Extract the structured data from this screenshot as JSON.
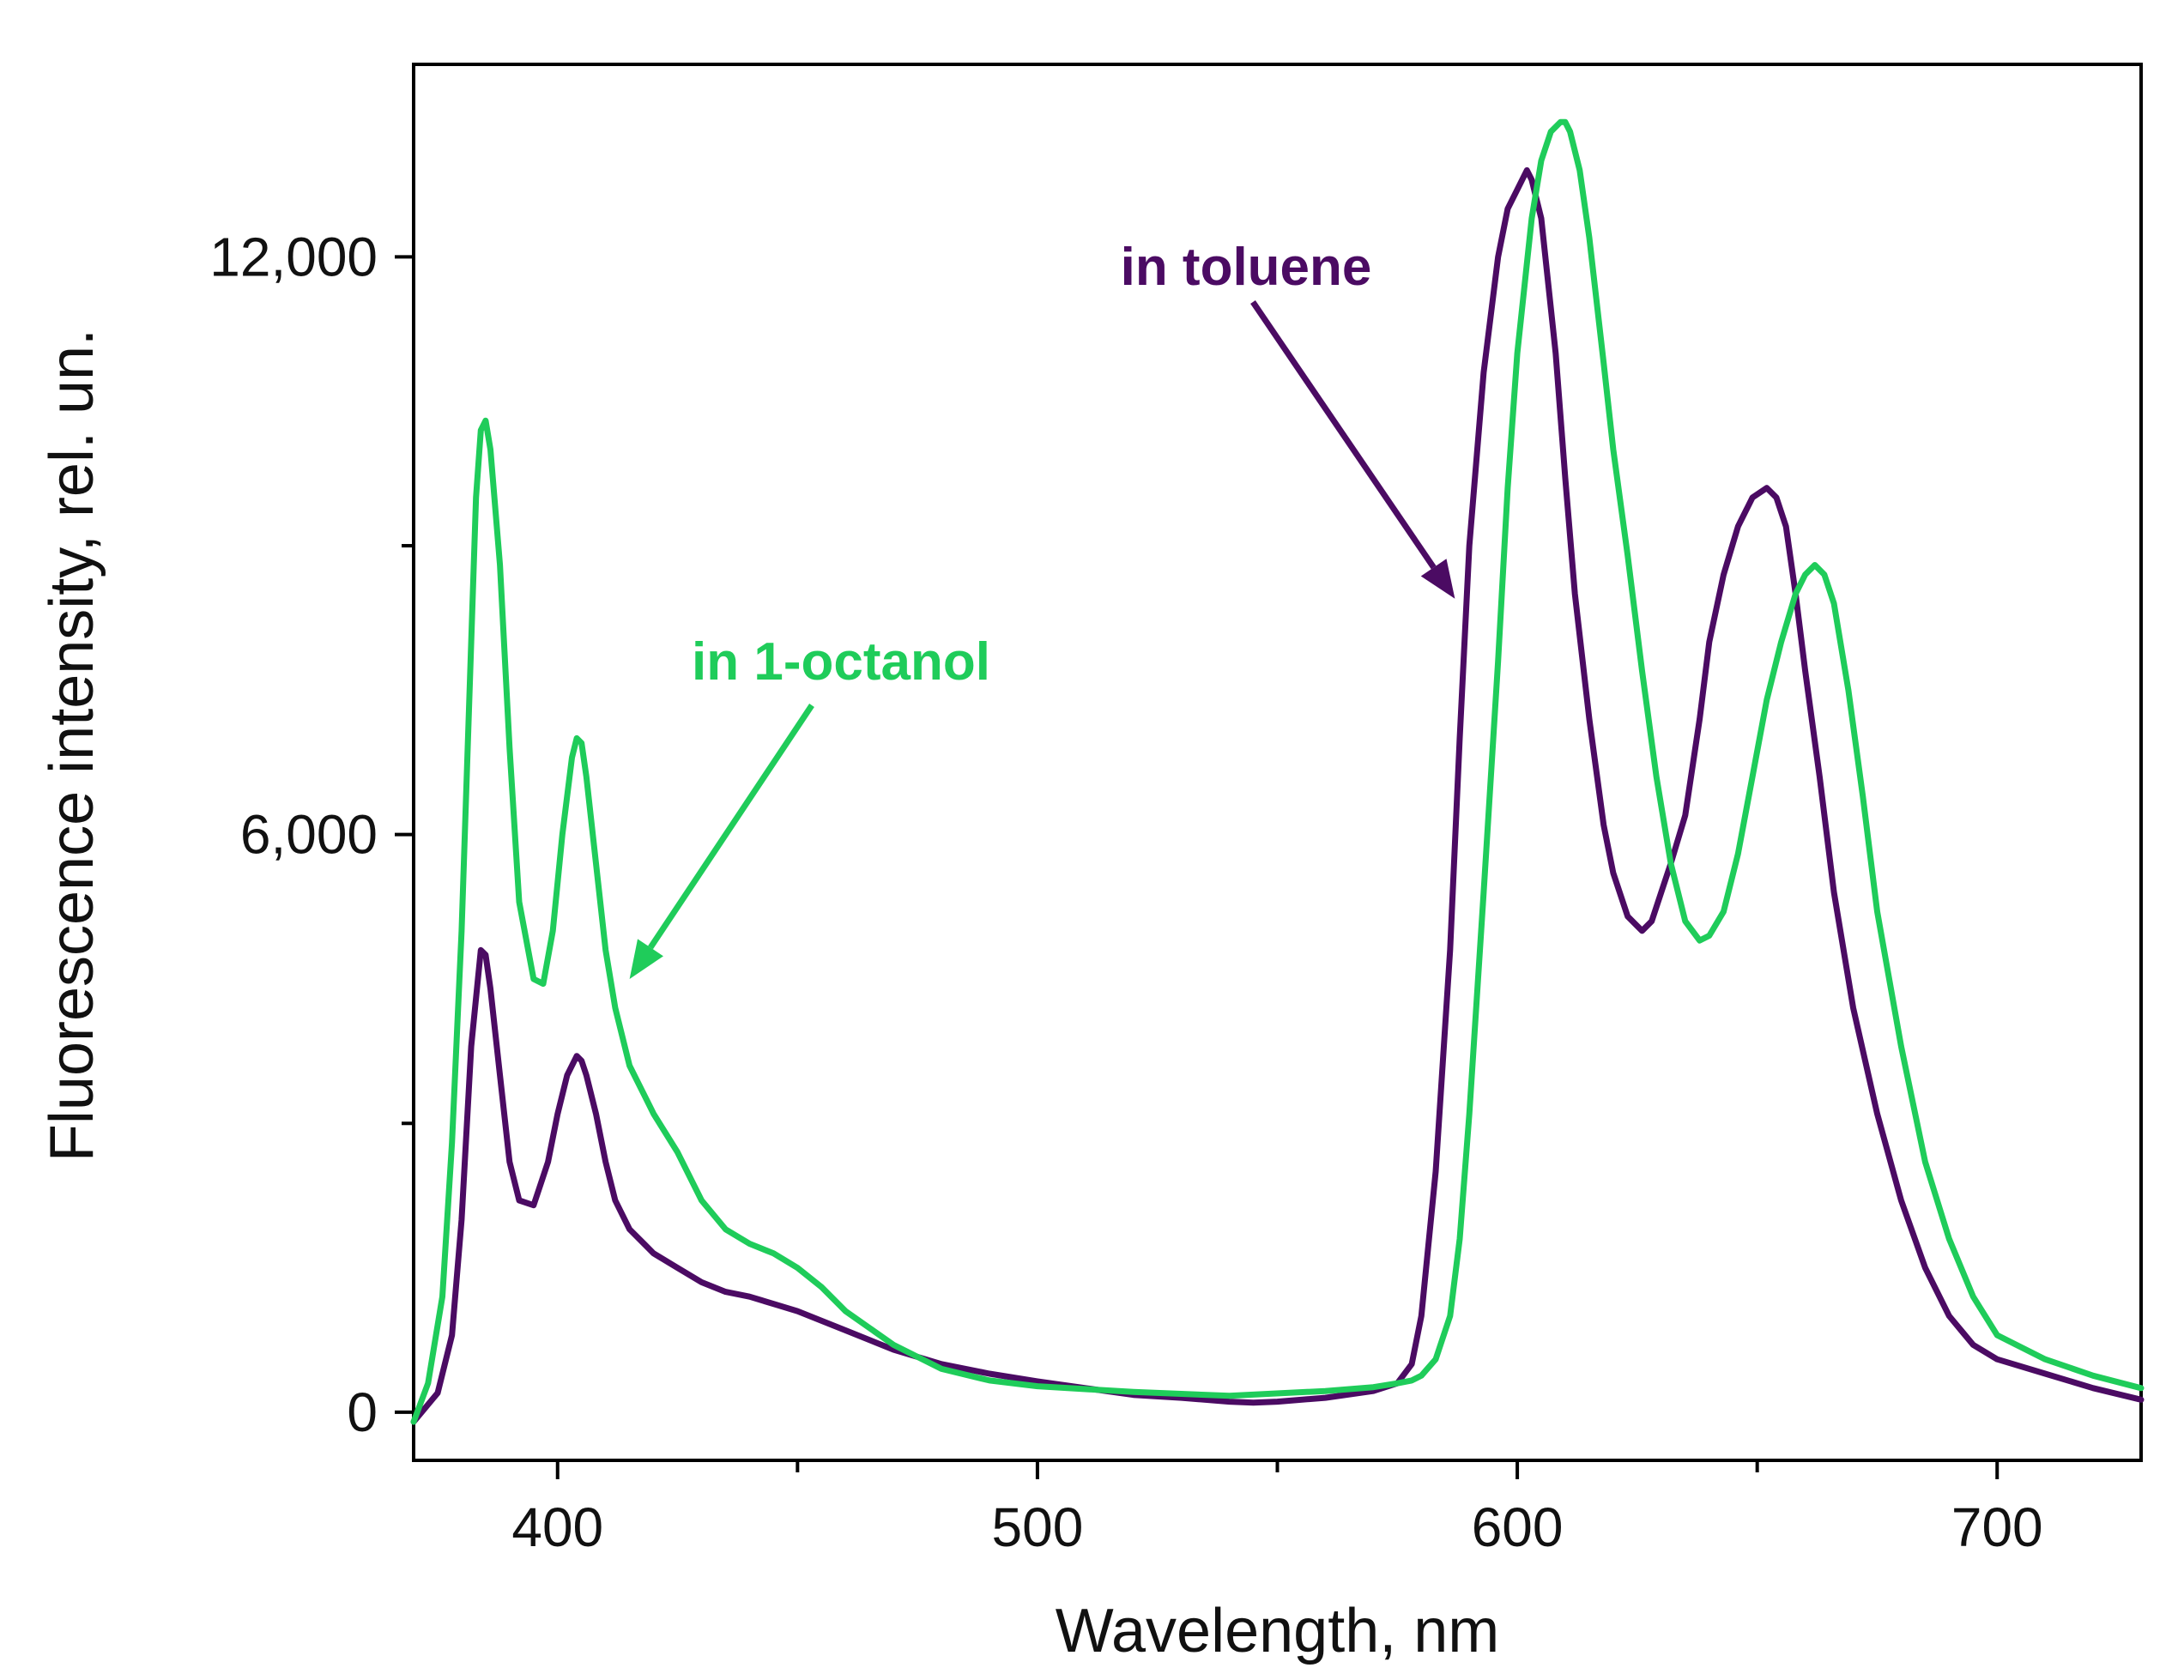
{
  "chart_data": {
    "type": "line",
    "title": "",
    "xlabel": "Wavelength, nm",
    "ylabel": "Fluorescence intensity, rel. un.",
    "xlim": [
      370,
      730
    ],
    "ylim": [
      -500,
      14000
    ],
    "x_ticks": [
      400,
      500,
      600,
      700
    ],
    "x_minor_ticks": [
      450,
      550,
      650
    ],
    "y_ticks": [
      0,
      6000,
      12000
    ],
    "y_tick_labels": [
      "0",
      "6,000",
      "12,000"
    ],
    "y_minor_ticks": [
      3000,
      9000
    ],
    "grid": false,
    "series": [
      {
        "name": "in toluene",
        "color": "#4b0b63",
        "x": [
          370,
          375,
          378,
          380,
          382,
          384,
          385,
          386,
          388,
          390,
          392,
          395,
          398,
          400,
          402,
          404,
          405,
          406,
          408,
          410,
          412,
          415,
          418,
          420,
          425,
          430,
          435,
          440,
          450,
          460,
          470,
          480,
          490,
          500,
          510,
          520,
          530,
          540,
          545,
          550,
          560,
          570,
          575,
          578,
          580,
          583,
          586,
          588,
          590,
          593,
          596,
          598,
          600,
          602,
          603,
          605,
          608,
          610,
          612,
          615,
          618,
          620,
          623,
          626,
          628,
          630,
          632,
          635,
          638,
          640,
          643,
          646,
          649,
          652,
          654,
          656,
          658,
          660,
          663,
          666,
          670,
          675,
          680,
          685,
          690,
          695,
          700,
          710,
          720,
          730
        ],
        "y": [
          -100,
          200,
          800,
          2000,
          3800,
          4800,
          4750,
          4400,
          3500,
          2600,
          2200,
          2150,
          2600,
          3100,
          3500,
          3700,
          3650,
          3500,
          3100,
          2600,
          2200,
          1900,
          1750,
          1650,
          1500,
          1350,
          1250,
          1200,
          1050,
          850,
          650,
          500,
          400,
          320,
          250,
          180,
          150,
          110,
          100,
          110,
          150,
          220,
          300,
          500,
          1000,
          2500,
          4800,
          7000,
          9000,
          10800,
          12000,
          12500,
          12700,
          12900,
          12800,
          12400,
          11000,
          9700,
          8500,
          7200,
          6100,
          5600,
          5150,
          5000,
          5100,
          5400,
          5700,
          6200,
          7200,
          8000,
          8700,
          9200,
          9500,
          9600,
          9500,
          9200,
          8500,
          7700,
          6600,
          5400,
          4200,
          3100,
          2200,
          1500,
          1000,
          700,
          550,
          400,
          250,
          130
        ]
      },
      {
        "name": "in 1-octanol",
        "color": "#1fcc5a",
        "x": [
          370,
          373,
          376,
          378,
          380,
          382,
          383,
          384,
          385,
          386,
          388,
          390,
          392,
          395,
          397,
          399,
          401,
          403,
          404,
          405,
          406,
          408,
          410,
          412,
          415,
          418,
          420,
          425,
          430,
          435,
          440,
          445,
          450,
          455,
          460,
          470,
          480,
          490,
          500,
          520,
          540,
          560,
          570,
          575,
          578,
          580,
          583,
          586,
          588,
          590,
          593,
          596,
          598,
          600,
          603,
          605,
          607,
          609,
          610,
          611,
          613,
          615,
          618,
          620,
          623,
          626,
          629,
          632,
          635,
          638,
          640,
          643,
          646,
          649,
          652,
          655,
          658,
          660,
          662,
          664,
          666,
          669,
          672,
          675,
          680,
          685,
          690,
          695,
          700,
          710,
          720,
          730
        ],
        "y": [
          -100,
          300,
          1200,
          2800,
          5000,
          8000,
          9500,
          10200,
          10300,
          10000,
          8800,
          6900,
          5300,
          4500,
          4450,
          5000,
          6000,
          6800,
          7000,
          6950,
          6600,
          5700,
          4800,
          4200,
          3600,
          3300,
          3100,
          2700,
          2200,
          1900,
          1750,
          1650,
          1500,
          1300,
          1050,
          700,
          450,
          330,
          270,
          210,
          170,
          220,
          260,
          300,
          330,
          380,
          550,
          1000,
          1800,
          3100,
          5400,
          7800,
          9600,
          11000,
          12400,
          13000,
          13300,
          13400,
          13400,
          13300,
          12900,
          12200,
          10900,
          10000,
          8900,
          7700,
          6600,
          5700,
          5100,
          4900,
          4950,
          5200,
          5800,
          6600,
          7400,
          8000,
          8500,
          8700,
          8800,
          8700,
          8400,
          7500,
          6400,
          5200,
          3800,
          2600,
          1800,
          1200,
          800,
          550,
          380,
          250
        ]
      }
    ],
    "annotations": [
      {
        "text": "in toluene",
        "color": "#4b0b63",
        "target_x": 587,
        "target_y": 8450
      },
      {
        "text": "in 1-octanol",
        "color": "#1fcc5a",
        "target_x": 415,
        "target_y": 4500
      }
    ]
  }
}
